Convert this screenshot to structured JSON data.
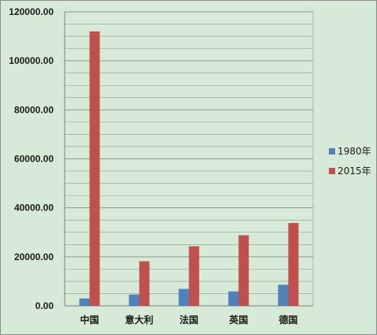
{
  "chart_data": {
    "type": "bar",
    "categories": [
      "中国",
      "意大利",
      "法国",
      "英国",
      "德国"
    ],
    "series": [
      {
        "name": "1980年",
        "color": "#4f81bd",
        "values": [
          3000,
          4600,
          6900,
          5900,
          8600
        ]
      },
      {
        "name": "2015年",
        "color": "#c0504d",
        "values": [
          112000,
          18200,
          24300,
          28800,
          33800
        ]
      }
    ],
    "y_ticks": [
      "120000.00",
      "100000.00",
      "80000.00",
      "60000.00",
      "40000.00",
      "20000.00",
      "0.00"
    ],
    "ylim": [
      0,
      120000
    ],
    "grid": true,
    "legend": "right",
    "colors": {
      "background": "#d7ead7",
      "gridline": "#8a9a8a"
    }
  }
}
